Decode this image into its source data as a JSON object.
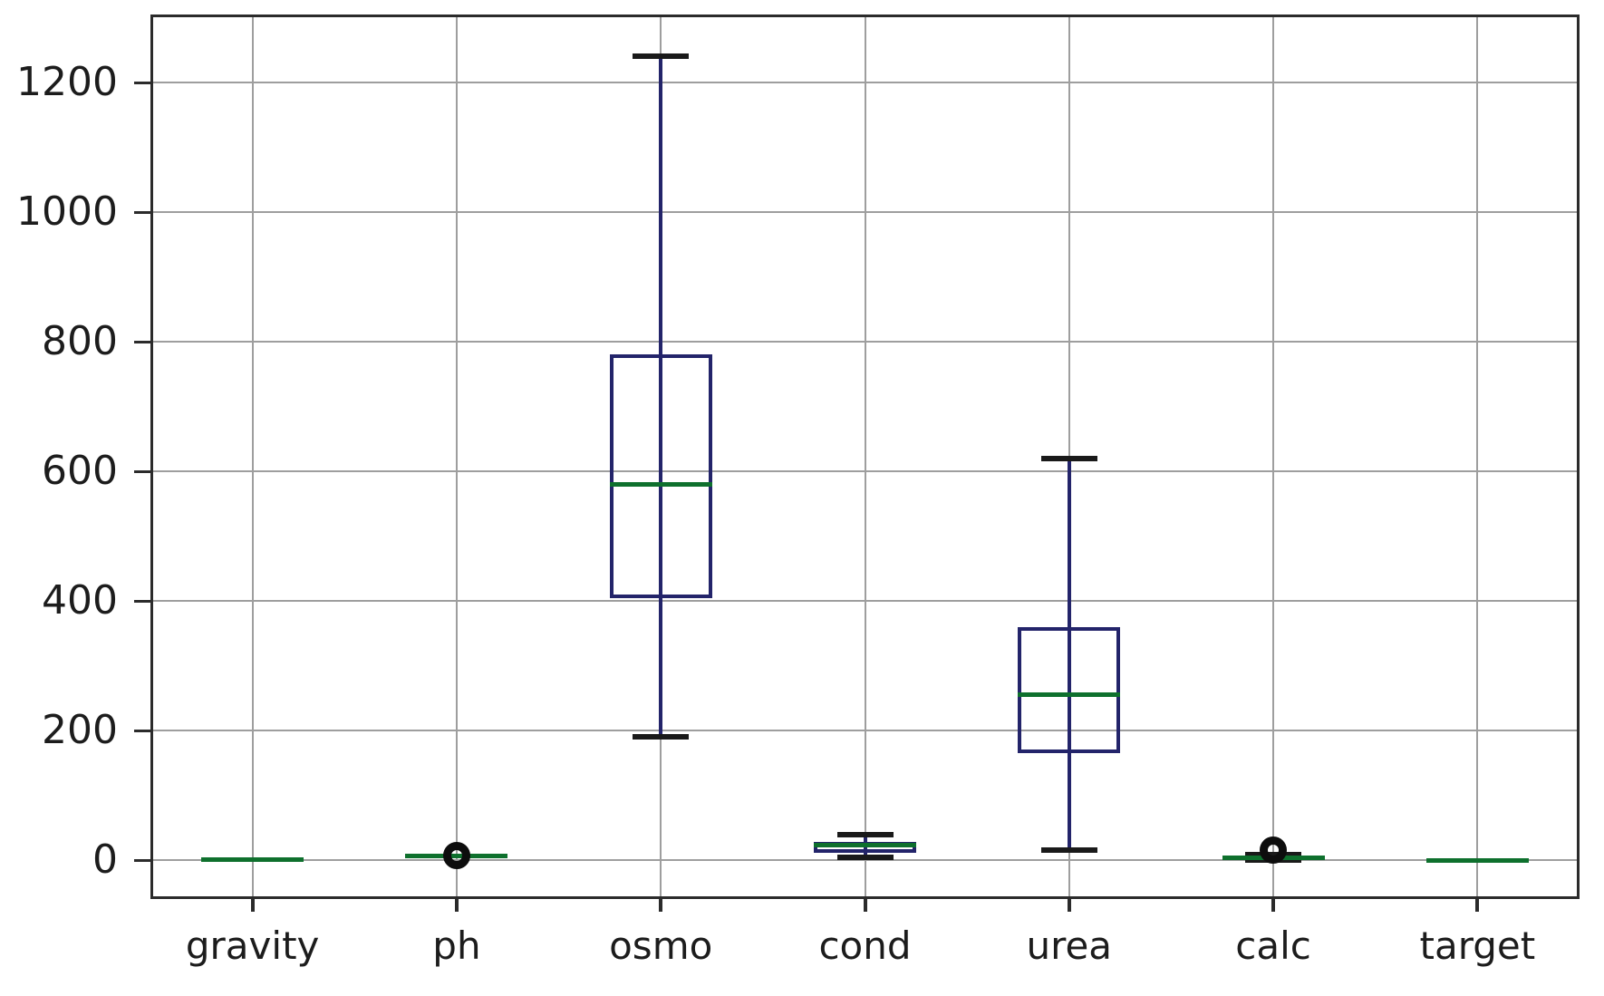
{
  "figure": {
    "kind": "matplotlib-boxplot-screenshot",
    "background": "#ffffff"
  },
  "chart_data": {
    "type": "boxplot",
    "title": "",
    "xlabel": "",
    "ylabel": "",
    "grid": true,
    "legend": null,
    "categories": [
      "gravity",
      "ph",
      "osmo",
      "cond",
      "urea",
      "calc",
      "target"
    ],
    "yticks": [
      0,
      200,
      400,
      600,
      800,
      1000,
      1200
    ],
    "ylim": [
      -60,
      1305
    ],
    "series": [
      {
        "name": "gravity",
        "whisker_low": 1,
        "q1": 1,
        "median": 1,
        "q3": 1,
        "whisker_high": 1,
        "fliers": []
      },
      {
        "name": "ph",
        "whisker_low": 4.8,
        "q1": 5.5,
        "median": 6,
        "q3": 6.5,
        "whisker_high": 7.9,
        "fliers": [
          7
        ]
      },
      {
        "name": "osmo",
        "whisker_low": 190,
        "q1": 405,
        "median": 580,
        "q3": 780,
        "whisker_high": 1240,
        "fliers": []
      },
      {
        "name": "cond",
        "whisker_low": 5,
        "q1": 12,
        "median": 23,
        "q3": 28,
        "whisker_high": 39,
        "fliers": []
      },
      {
        "name": "urea",
        "whisker_low": 15,
        "q1": 165,
        "median": 255,
        "q3": 360,
        "whisker_high": 620,
        "fliers": []
      },
      {
        "name": "calc",
        "whisker_low": 0.2,
        "q1": 2,
        "median": 4,
        "q3": 6,
        "whisker_high": 9,
        "fliers": [
          15
        ]
      },
      {
        "name": "target",
        "whisker_low": 0,
        "q1": 0,
        "median": 0,
        "q3": 0,
        "whisker_high": 0,
        "fliers": []
      }
    ],
    "colors": {
      "box": "#23246a",
      "median": "#0e702d",
      "cap": "#1a1a1a",
      "flier": "#0d0d0d",
      "grid": "#9e9e9e",
      "spine": "#2b2b2b",
      "text": "#1c1c1c"
    }
  }
}
